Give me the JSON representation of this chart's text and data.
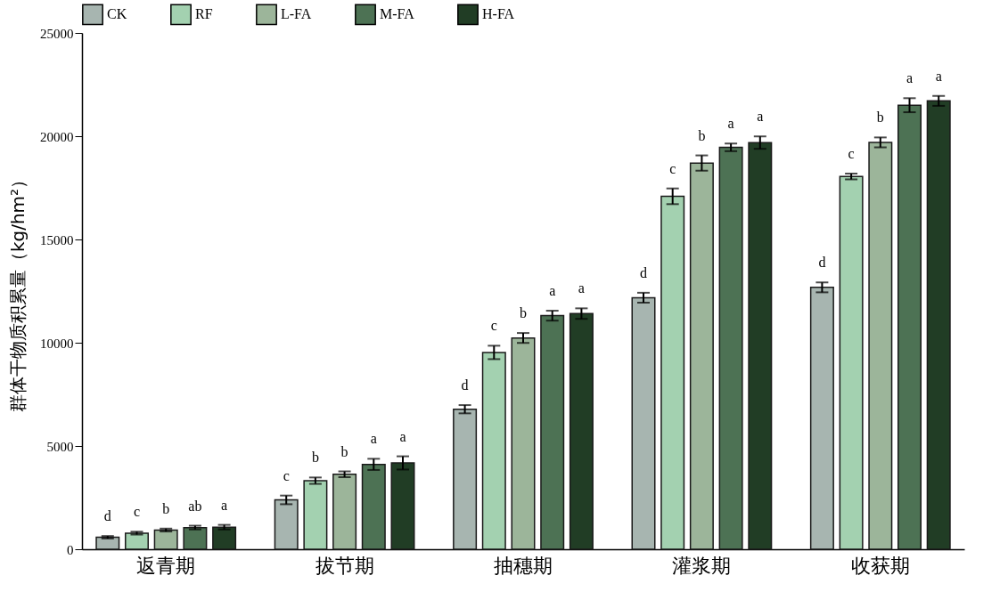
{
  "chart_data": {
    "type": "bar",
    "ylabel": "群体干物质积累量（kg/hm²）",
    "categories": [
      "返青期",
      "拔节期",
      "抽穗期",
      "灌浆期",
      "收获期"
    ],
    "ylim": [
      0,
      25000
    ],
    "yticks": [
      0,
      5000,
      10000,
      15000,
      20000,
      25000
    ],
    "grid": false,
    "legend": "top",
    "series": [
      {
        "name": "CK",
        "color": "#a7b5b0",
        "values": [
          580,
          2390,
          6780,
          12180,
          12680
        ],
        "errors": [
          60,
          210,
          200,
          240,
          240
        ],
        "value_labels": [
          "d",
          "c",
          "d",
          "d",
          "d"
        ]
      },
      {
        "name": "RF",
        "color": "#a3d1b0",
        "values": [
          780,
          3320,
          9530,
          17090,
          18050
        ],
        "errors": [
          70,
          155,
          325,
          380,
          140
        ],
        "value_labels": [
          "c",
          "b",
          "c",
          "c",
          "c"
        ]
      },
      {
        "name": "L-FA",
        "color": "#9cb59a",
        "values": [
          930,
          3630,
          10230,
          18700,
          19700
        ],
        "errors": [
          70,
          140,
          240,
          370,
          240
        ],
        "value_labels": [
          "b",
          "b",
          "b",
          "b",
          "b"
        ]
      },
      {
        "name": "M-FA",
        "color": "#4d7254",
        "values": [
          1050,
          4110,
          11310,
          19460,
          21500
        ],
        "errors": [
          90,
          270,
          240,
          185,
          340
        ],
        "value_labels": [
          "ab",
          "a",
          "a",
          "a",
          "a"
        ]
      },
      {
        "name": "H-FA",
        "color": "#213d25",
        "values": [
          1070,
          4180,
          11410,
          19690,
          21710
        ],
        "errors": [
          110,
          320,
          255,
          300,
          240
        ],
        "value_labels": [
          "a",
          "a",
          "a",
          "a",
          "a"
        ]
      }
    ]
  }
}
